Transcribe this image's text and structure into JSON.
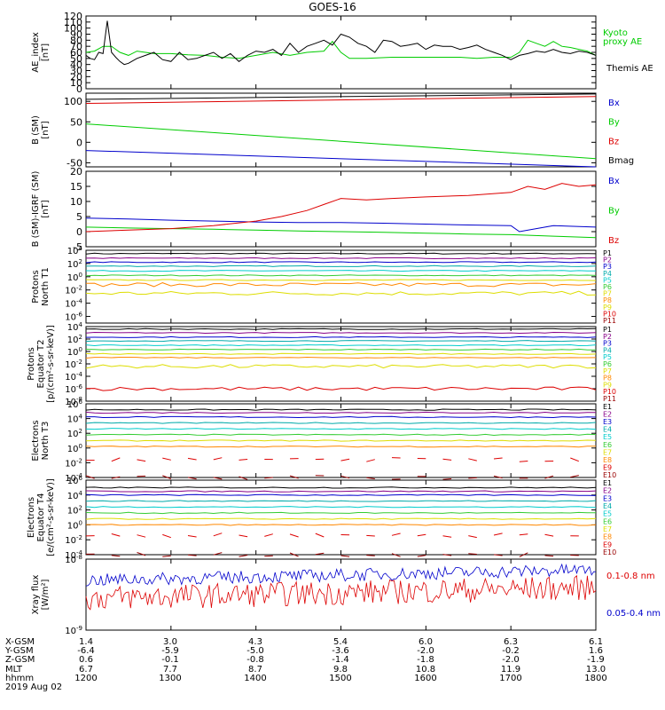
{
  "title": "GOES-16",
  "colors": {
    "black": "#000000",
    "blue": "#0000cc",
    "green": "#00cc00",
    "red": "#dd0000",
    "cyan": "#00cccc",
    "yellow": "#dddd00",
    "orange": "#ff8800",
    "purple": "#880088",
    "magenta": "#cc00cc",
    "darkred": "#990000",
    "lightgreen": "#33cc33",
    "teal": "#00aaaa"
  },
  "chart_data": [
    {
      "type": "line",
      "id": "ae",
      "ylabel": "AE_index\n[nT]",
      "ylim": [
        0,
        120
      ],
      "yticks": [
        0,
        10,
        20,
        30,
        40,
        50,
        60,
        70,
        80,
        90,
        100,
        110,
        120
      ],
      "xlim": [
        1200,
        1800
      ],
      "series": [
        {
          "name": "Kyoto proxy AE",
          "color": "#00cc00",
          "x": [
            1200,
            1210,
            1220,
            1230,
            1240,
            1250,
            1260,
            1270,
            1280,
            1300,
            1320,
            1340,
            1360,
            1380,
            1400,
            1420,
            1440,
            1460,
            1480,
            1490,
            1500,
            1510,
            1530,
            1560,
            1600,
            1640,
            1660,
            1680,
            1700,
            1710,
            1720,
            1730,
            1740,
            1750,
            1760,
            1770,
            1780,
            1790,
            1800
          ],
          "y": [
            60,
            62,
            70,
            70,
            60,
            55,
            62,
            60,
            58,
            58,
            56,
            55,
            52,
            50,
            55,
            60,
            55,
            60,
            62,
            78,
            60,
            50,
            50,
            52,
            52,
            52,
            50,
            52,
            52,
            60,
            80,
            75,
            70,
            78,
            70,
            68,
            65,
            62,
            55
          ]
        },
        {
          "name": "Themis AE",
          "color": "#000000",
          "x": [
            1200,
            1205,
            1210,
            1215,
            1220,
            1225,
            1230,
            1235,
            1240,
            1245,
            1250,
            1260,
            1270,
            1280,
            1290,
            1300,
            1310,
            1320,
            1330,
            1340,
            1350,
            1360,
            1370,
            1380,
            1390,
            1400,
            1410,
            1420,
            1430,
            1440,
            1450,
            1460,
            1470,
            1480,
            1490,
            1500,
            1510,
            1520,
            1530,
            1540,
            1550,
            1560,
            1570,
            1580,
            1590,
            1600,
            1610,
            1620,
            1630,
            1640,
            1650,
            1660,
            1670,
            1680,
            1690,
            1700,
            1710,
            1720,
            1730,
            1740,
            1750,
            1760,
            1770,
            1780,
            1790,
            1800
          ],
          "y": [
            55,
            50,
            48,
            60,
            58,
            112,
            60,
            52,
            45,
            40,
            42,
            50,
            55,
            60,
            48,
            45,
            60,
            48,
            50,
            55,
            60,
            50,
            58,
            45,
            55,
            62,
            60,
            65,
            55,
            75,
            60,
            70,
            75,
            80,
            72,
            90,
            85,
            75,
            70,
            60,
            80,
            78,
            70,
            72,
            75,
            65,
            72,
            70,
            70,
            65,
            68,
            72,
            65,
            60,
            55,
            48,
            55,
            58,
            62,
            60,
            65,
            60,
            58,
            62,
            60,
            55
          ]
        }
      ]
    },
    {
      "type": "line",
      "id": "bsm",
      "ylabel": "B (SM)\n[nT]",
      "ylim": [
        -60,
        120
      ],
      "yticks": [
        -50,
        0,
        50,
        100
      ],
      "xlim": [
        1200,
        1800
      ],
      "series": [
        {
          "name": "Bx",
          "color": "#0000cc",
          "x": [
            1200,
            1800
          ],
          "y": [
            -20,
            -60
          ]
        },
        {
          "name": "By",
          "color": "#00cc00",
          "x": [
            1200,
            1800
          ],
          "y": [
            45,
            -40
          ]
        },
        {
          "name": "Bz",
          "color": "#dd0000",
          "x": [
            1200,
            1800
          ],
          "y": [
            95,
            112
          ]
        },
        {
          "name": "Bmag",
          "color": "#000000",
          "x": [
            1200,
            1800
          ],
          "y": [
            105,
            118
          ]
        }
      ]
    },
    {
      "type": "line",
      "id": "bigrf",
      "ylabel": "B (SM)-IGRF (SM)\n[nT]",
      "ylim": [
        -5,
        20
      ],
      "yticks": [
        -5,
        0,
        5,
        10,
        15,
        20
      ],
      "xlim": [
        1200,
        1800
      ],
      "series": [
        {
          "name": "Bx",
          "color": "#0000cc",
          "x": [
            1200,
            1250,
            1300,
            1350,
            1400,
            1450,
            1500,
            1550,
            1600,
            1650,
            1700,
            1710,
            1750,
            1800
          ],
          "y": [
            4.5,
            4.2,
            3.8,
            3.5,
            3.2,
            3.0,
            3.0,
            2.8,
            2.5,
            2.2,
            2.0,
            0.0,
            2.0,
            1.5
          ]
        },
        {
          "name": "By",
          "color": "#00cc00",
          "x": [
            1200,
            1250,
            1300,
            1350,
            1400,
            1450,
            1500,
            1550,
            1600,
            1650,
            1700,
            1750,
            1800
          ],
          "y": [
            1.5,
            1.2,
            1.0,
            0.8,
            0.5,
            0.2,
            0.0,
            -0.2,
            -0.5,
            -0.8,
            -1.0,
            -1.5,
            -2.0
          ]
        },
        {
          "name": "Bz",
          "color": "#dd0000",
          "x": [
            1200,
            1250,
            1300,
            1350,
            1400,
            1430,
            1460,
            1480,
            1500,
            1530,
            1560,
            1600,
            1650,
            1700,
            1720,
            1740,
            1760,
            1780,
            1800
          ],
          "y": [
            0,
            0.5,
            1.0,
            2.0,
            3.5,
            5.0,
            7.0,
            9.0,
            11.0,
            10.5,
            11.0,
            11.5,
            12.0,
            13.0,
            15.0,
            14.0,
            16.0,
            15.0,
            15.5
          ]
        }
      ]
    },
    {
      "type": "line",
      "id": "protons-north",
      "ylabel": "Protons\nNorth T1",
      "scale": "log",
      "ylim": [
        -7,
        4
      ],
      "yticks": [
        "10^4",
        "10^2",
        "10^0",
        "10^-2",
        "10^-4",
        "10^-6"
      ],
      "xlim": [
        1200,
        1800
      ],
      "channels": [
        "P1",
        "P2",
        "P3",
        "P4",
        "P5",
        "P6",
        "P7",
        "P8",
        "P9",
        "P10",
        "P11"
      ],
      "levels": [
        3.5,
        2.8,
        2.2,
        1.6,
        0.9,
        0.2,
        -0.5,
        -1.2,
        -2.5,
        -6.5,
        -7
      ],
      "series_colors": [
        "#000000",
        "#880088",
        "#0000cc",
        "#00aaaa",
        "#00cccc",
        "#33cc33",
        "#dddd00",
        "#ff8800",
        "#dddd00",
        "#dd0000",
        "#990000"
      ]
    },
    {
      "type": "line",
      "id": "protons-equator",
      "ylabel": "Protons\nEquator T2\n[p/(cm²-s-sr-keV)]",
      "scale": "log",
      "ylim": [
        -8,
        4
      ],
      "yticks": [
        "10^4",
        "10^2",
        "10^0",
        "10^-2",
        "10^-4",
        "10^-6",
        "10^-8"
      ],
      "xlim": [
        1200,
        1800
      ],
      "channels": [
        "P1",
        "P2",
        "P3",
        "P4",
        "P5",
        "P6",
        "P7",
        "P8",
        "P9",
        "P10",
        "P11"
      ],
      "levels": [
        3.6,
        3.0,
        2.3,
        1.7,
        1.0,
        0.3,
        -0.4,
        -1.0,
        -2.4,
        -6.0,
        -8
      ],
      "series_colors": [
        "#000000",
        "#880088",
        "#0000cc",
        "#00aaaa",
        "#00cccc",
        "#33cc33",
        "#dddd00",
        "#ff8800",
        "#dddd00",
        "#dd0000",
        "#990000"
      ]
    },
    {
      "type": "line",
      "id": "electrons-north",
      "ylabel": "Electrons\nNorth T3",
      "scale": "log",
      "ylim": [
        -4,
        6
      ],
      "yticks": [
        "10^6",
        "10^4",
        "10^2",
        "10^0",
        "10^-2",
        "10^-4"
      ],
      "xlim": [
        1200,
        1800
      ],
      "channels": [
        "E1",
        "E2",
        "E3",
        "E4",
        "E5",
        "E6",
        "E7",
        "E8",
        "E9",
        "E10"
      ],
      "levels": [
        5.2,
        4.8,
        4.2,
        3.4,
        2.6,
        1.8,
        1.0,
        0.2,
        -1.6,
        -4
      ],
      "series_colors": [
        "#000000",
        "#880088",
        "#0000cc",
        "#00aaaa",
        "#00cccc",
        "#33cc33",
        "#dddd00",
        "#ff8800",
        "#dd0000",
        "#990000"
      ]
    },
    {
      "type": "line",
      "id": "electrons-equator",
      "ylabel": "Electrons\nEquator T4\n[e/(cm²-s-sr-keV)]",
      "scale": "log",
      "ylim": [
        -4,
        6
      ],
      "yticks": [
        "10^6",
        "10^4",
        "10^2",
        "10^0",
        "10^-2",
        "10^-4"
      ],
      "xlim": [
        1200,
        1800
      ],
      "channels": [
        "E1",
        "E2",
        "E3",
        "E4",
        "E5",
        "E6",
        "E7",
        "E8",
        "E9",
        "E10"
      ],
      "levels": [
        5.0,
        4.5,
        4.0,
        3.2,
        2.4,
        1.6,
        0.8,
        0.0,
        -1.4,
        -4
      ],
      "series_colors": [
        "#000000",
        "#880088",
        "#0000cc",
        "#00aaaa",
        "#00cccc",
        "#33cc33",
        "#dddd00",
        "#ff8800",
        "#dd0000",
        "#990000"
      ]
    },
    {
      "type": "line",
      "id": "xray",
      "ylabel": "Xray flux\n[W/m²]",
      "scale": "log",
      "ylim": [
        -9,
        -8
      ],
      "yticks": [
        "10^-8",
        "10^-9"
      ],
      "xlim": [
        1200,
        1800
      ],
      "series": [
        {
          "name": "0.1-0.8 nm",
          "color": "#dd0000",
          "level": -8.55
        },
        {
          "name": "0.05-0.4 nm",
          "color": "#0000cc",
          "level": -8.3
        }
      ]
    }
  ],
  "legends": {
    "ae": [
      "Kyoto proxy AE",
      "Themis AE"
    ],
    "bsm": [
      "Bx",
      "By",
      "Bz",
      "Bmag"
    ],
    "bigrf": [
      "Bx",
      "By",
      "Bz"
    ],
    "xray": [
      "0.1-0.8 nm",
      "0.05-0.4 nm"
    ]
  },
  "orbit_table": {
    "rows": [
      {
        "label": "X-GSM",
        "values": [
          "1.4",
          "3.0",
          "4.3",
          "5.4",
          "6.0",
          "6.3",
          "6.1"
        ]
      },
      {
        "label": "Y-GSM",
        "values": [
          "-6.4",
          "-5.9",
          "-5.0",
          "-3.6",
          "-2.0",
          "-0.2",
          "1.6"
        ]
      },
      {
        "label": "Z-GSM",
        "values": [
          "0.6",
          "-0.1",
          "-0.8",
          "-1.4",
          "-1.8",
          "-2.0",
          "-1.9"
        ]
      },
      {
        "label": "MLT",
        "values": [
          "6.7",
          "7.7",
          "8.7",
          "9.8",
          "10.8",
          "11.9",
          "13.0"
        ]
      },
      {
        "label": "hhmm",
        "values": [
          "1200",
          "1300",
          "1400",
          "1500",
          "1600",
          "1700",
          "1800"
        ]
      }
    ],
    "date": "2019 Aug 02"
  }
}
